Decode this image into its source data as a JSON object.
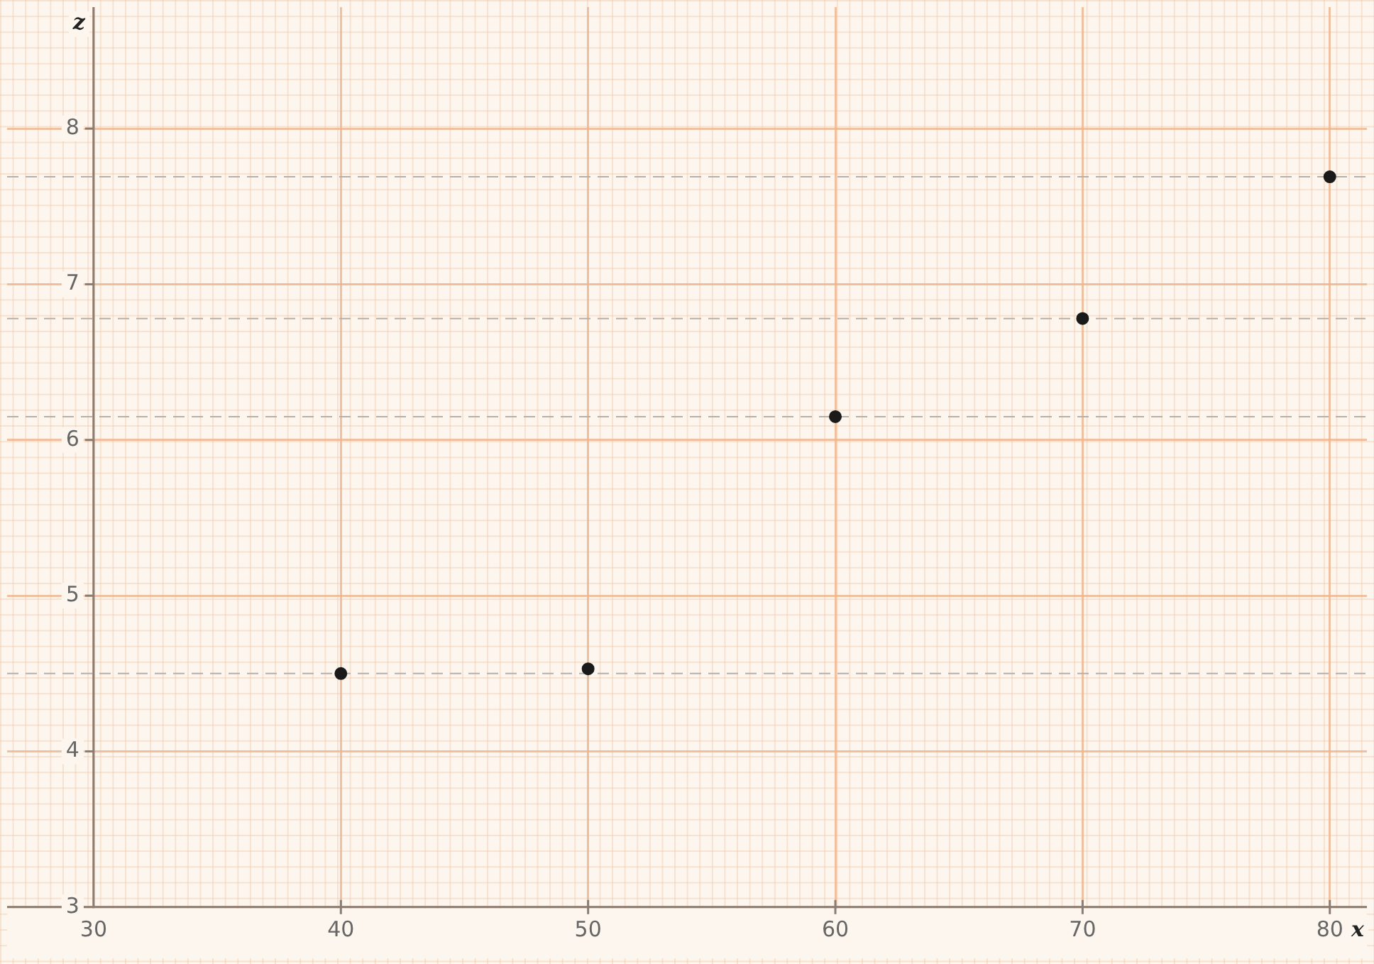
{
  "chart_data": {
    "type": "scatter",
    "xlabel": "x",
    "ylabel": "z",
    "x": [
      40,
      50,
      60,
      70,
      80
    ],
    "series": [
      {
        "color": "#1a1a1a",
        "values": [
          4.5,
          4.53,
          6.15,
          6.78,
          7.69
        ]
      }
    ],
    "xlim": [
      26.5,
      81.5
    ],
    "ylim": [
      2.68,
      8.78
    ],
    "xticks": [
      30,
      40,
      50,
      60,
      70,
      80
    ],
    "yticks": [
      3,
      4,
      5,
      6,
      7,
      8
    ],
    "grid": true,
    "marker": "circle",
    "legend": false,
    "ref_lines": [
      {
        "axis": "y",
        "value": 4.5,
        "color": "#b8b0a8",
        "line_style": "dashed"
      },
      {
        "axis": "y",
        "value": 6.15,
        "color": "#b8b0a8",
        "line_style": "dashed"
      },
      {
        "axis": "y",
        "value": 6.78,
        "color": "#b8b0a8",
        "line_style": "dashed"
      },
      {
        "axis": "y",
        "value": 7.69,
        "color": "#b8b0a8",
        "line_style": "dashed"
      }
    ]
  }
}
